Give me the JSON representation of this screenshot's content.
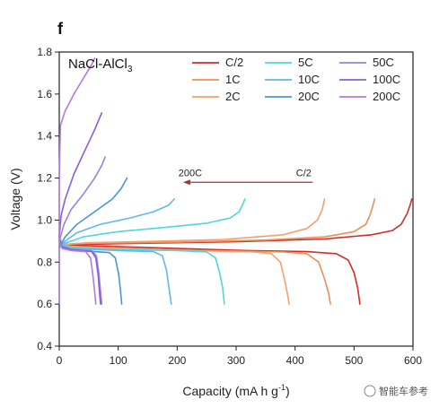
{
  "chart_data": {
    "type": "line",
    "title": "",
    "panel_label": "f",
    "material_label_main": "NaCl-AlCl",
    "material_label_sub": "3",
    "xlabel_main": "Capacity (mA h g",
    "xlabel_sup": "-1",
    "xlabel_close": ")",
    "ylabel": "Voltage (V)",
    "xlim": [
      0,
      600
    ],
    "ylim": [
      0.4,
      1.8
    ],
    "x_ticks": [
      {
        "value": 0,
        "label": "0"
      },
      {
        "value": 100,
        "label": "100"
      },
      {
        "value": 200,
        "label": "200"
      },
      {
        "value": 300,
        "label": "300"
      },
      {
        "value": 400,
        "label": "400"
      },
      {
        "value": 500,
        "label": "500"
      },
      {
        "value": 600,
        "label": "600"
      }
    ],
    "y_ticks": [
      {
        "value": 0.4,
        "label": "0.4"
      },
      {
        "value": 0.6,
        "label": "0.6"
      },
      {
        "value": 0.8,
        "label": "0.8"
      },
      {
        "value": 1.0,
        "label": "1.0"
      },
      {
        "value": 1.2,
        "label": "1.2"
      },
      {
        "value": 1.4,
        "label": "1.4"
      },
      {
        "value": 1.6,
        "label": "1.6"
      },
      {
        "value": 1.8,
        "label": "1.8"
      }
    ],
    "arrow": {
      "left_label": "200C",
      "right_label": "C/2",
      "y": 1.18,
      "x_start": 430,
      "x_end": 210
    },
    "legend_placement": "top-right",
    "series": [
      {
        "name": "C/2",
        "color": "#d22b2b",
        "discharge": [
          [
            0,
            0.93
          ],
          [
            4,
            0.89
          ],
          [
            20,
            0.88
          ],
          [
            80,
            0.875
          ],
          [
            200,
            0.865
          ],
          [
            320,
            0.855
          ],
          [
            420,
            0.85
          ],
          [
            470,
            0.84
          ],
          [
            490,
            0.81
          ],
          [
            500,
            0.75
          ],
          [
            506,
            0.68
          ],
          [
            510,
            0.6
          ]
        ],
        "charge": [
          [
            0,
            0.87
          ],
          [
            10,
            0.88
          ],
          [
            50,
            0.885
          ],
          [
            150,
            0.89
          ],
          [
            300,
            0.897
          ],
          [
            450,
            0.91
          ],
          [
            530,
            0.93
          ],
          [
            565,
            0.95
          ],
          [
            580,
            0.98
          ],
          [
            590,
            1.03
          ],
          [
            596,
            1.08
          ],
          [
            598,
            1.1
          ]
        ]
      },
      {
        "name": "1C",
        "color": "#ec8f56",
        "discharge": [
          [
            0,
            0.93
          ],
          [
            4,
            0.89
          ],
          [
            20,
            0.875
          ],
          [
            100,
            0.865
          ],
          [
            250,
            0.855
          ],
          [
            380,
            0.848
          ],
          [
            420,
            0.84
          ],
          [
            440,
            0.8
          ],
          [
            450,
            0.72
          ],
          [
            457,
            0.65
          ],
          [
            460,
            0.6
          ]
        ],
        "charge": [
          [
            0,
            0.87
          ],
          [
            10,
            0.885
          ],
          [
            60,
            0.89
          ],
          [
            200,
            0.895
          ],
          [
            350,
            0.905
          ],
          [
            450,
            0.92
          ],
          [
            500,
            0.945
          ],
          [
            520,
            0.98
          ],
          [
            528,
            1.03
          ],
          [
            533,
            1.08
          ],
          [
            535,
            1.1
          ]
        ]
      },
      {
        "name": "2C",
        "color": "#f2a070",
        "discharge": [
          [
            0,
            0.93
          ],
          [
            4,
            0.89
          ],
          [
            20,
            0.875
          ],
          [
            100,
            0.865
          ],
          [
            230,
            0.855
          ],
          [
            330,
            0.848
          ],
          [
            360,
            0.84
          ],
          [
            375,
            0.8
          ],
          [
            382,
            0.72
          ],
          [
            387,
            0.65
          ],
          [
            390,
            0.6
          ]
        ],
        "charge": [
          [
            0,
            0.87
          ],
          [
            10,
            0.885
          ],
          [
            50,
            0.892
          ],
          [
            150,
            0.898
          ],
          [
            280,
            0.908
          ],
          [
            380,
            0.93
          ],
          [
            420,
            0.96
          ],
          [
            438,
            1.0
          ],
          [
            446,
            1.05
          ],
          [
            450,
            1.1
          ]
        ]
      },
      {
        "name": "5C",
        "color": "#4ed8d8",
        "discharge": [
          [
            0,
            0.93
          ],
          [
            4,
            0.885
          ],
          [
            20,
            0.87
          ],
          [
            100,
            0.86
          ],
          [
            200,
            0.855
          ],
          [
            250,
            0.848
          ],
          [
            265,
            0.82
          ],
          [
            272,
            0.75
          ],
          [
            277,
            0.68
          ],
          [
            280,
            0.6
          ]
        ],
        "charge": [
          [
            0,
            0.87
          ],
          [
            10,
            0.89
          ],
          [
            40,
            0.92
          ],
          [
            100,
            0.945
          ],
          [
            180,
            0.965
          ],
          [
            250,
            0.985
          ],
          [
            290,
            1.01
          ],
          [
            305,
            1.04
          ],
          [
            312,
            1.08
          ],
          [
            315,
            1.1
          ]
        ]
      },
      {
        "name": "10C",
        "color": "#5fb8e8",
        "discharge": [
          [
            0,
            0.92
          ],
          [
            4,
            0.88
          ],
          [
            20,
            0.865
          ],
          [
            100,
            0.855
          ],
          [
            160,
            0.85
          ],
          [
            175,
            0.83
          ],
          [
            182,
            0.76
          ],
          [
            186,
            0.68
          ],
          [
            190,
            0.6
          ]
        ],
        "charge": [
          [
            0,
            0.87
          ],
          [
            10,
            0.9
          ],
          [
            30,
            0.94
          ],
          [
            70,
            0.98
          ],
          [
            120,
            1.01
          ],
          [
            160,
            1.04
          ],
          [
            185,
            1.07
          ],
          [
            195,
            1.1
          ]
        ]
      },
      {
        "name": "20C",
        "color": "#4a94d6",
        "discharge": [
          [
            0,
            0.92
          ],
          [
            4,
            0.875
          ],
          [
            20,
            0.86
          ],
          [
            60,
            0.85
          ],
          [
            85,
            0.845
          ],
          [
            95,
            0.82
          ],
          [
            101,
            0.74
          ],
          [
            104,
            0.66
          ],
          [
            106,
            0.6
          ]
        ],
        "charge": [
          [
            0,
            0.87
          ],
          [
            10,
            0.92
          ],
          [
            30,
            0.98
          ],
          [
            60,
            1.04
          ],
          [
            90,
            1.1
          ],
          [
            105,
            1.15
          ],
          [
            115,
            1.2
          ]
        ]
      },
      {
        "name": "50C",
        "color": "#9b7fe0",
        "discharge": [
          [
            0,
            0.9
          ],
          [
            5,
            0.87
          ],
          [
            20,
            0.86
          ],
          [
            55,
            0.855
          ],
          [
            63,
            0.83
          ],
          [
            67,
            0.75
          ],
          [
            70,
            0.66
          ],
          [
            72,
            0.6
          ]
        ],
        "charge": [
          [
            0,
            0.9
          ],
          [
            8,
            0.98
          ],
          [
            20,
            1.05
          ],
          [
            40,
            1.12
          ],
          [
            60,
            1.2
          ],
          [
            72,
            1.26
          ],
          [
            78,
            1.3
          ]
        ]
      },
      {
        "name": "100C",
        "color": "#8a5ed8",
        "discharge": [
          [
            0,
            0.9
          ],
          [
            5,
            0.87
          ],
          [
            20,
            0.86
          ],
          [
            55,
            0.85
          ],
          [
            62,
            0.82
          ],
          [
            66,
            0.74
          ],
          [
            68,
            0.66
          ],
          [
            70,
            0.6
          ]
        ],
        "charge": [
          [
            0,
            0.92
          ],
          [
            3,
            1.02
          ],
          [
            10,
            1.1
          ],
          [
            25,
            1.22
          ],
          [
            45,
            1.34
          ],
          [
            60,
            1.43
          ],
          [
            72,
            1.51
          ]
        ]
      },
      {
        "name": "200C",
        "color": "#b57ad8",
        "discharge": [
          [
            0,
            0.9
          ],
          [
            5,
            0.865
          ],
          [
            20,
            0.855
          ],
          [
            45,
            0.85
          ],
          [
            53,
            0.82
          ],
          [
            57,
            0.74
          ],
          [
            60,
            0.66
          ],
          [
            62,
            0.6
          ]
        ],
        "charge": [
          [
            0,
            0.6
          ],
          [
            0,
            1.2
          ],
          [
            2,
            1.45
          ],
          [
            10,
            1.52
          ],
          [
            25,
            1.6
          ],
          [
            42,
            1.68
          ],
          [
            55,
            1.74
          ],
          [
            60,
            1.77
          ]
        ]
      }
    ]
  },
  "watermark": "智能车参考"
}
